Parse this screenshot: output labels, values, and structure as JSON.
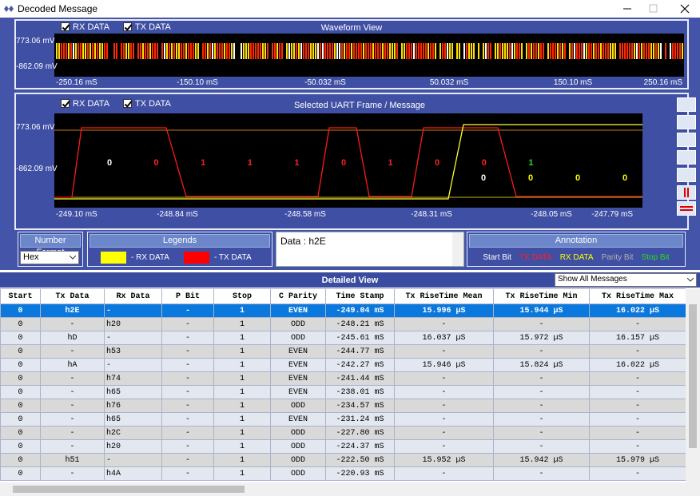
{
  "window": {
    "title": "Decoded Message"
  },
  "waveform_view": {
    "rx_label": "RX DATA",
    "tx_label": "TX DATA",
    "title": "Waveform View",
    "y_labels": [
      "773.06 mV",
      "-862.09 mV"
    ],
    "x_labels": [
      "-250.16 mS",
      "-150.10 mS",
      "-50.032 mS",
      "50.032 mS",
      "150.10 mS",
      "250.16 mS"
    ]
  },
  "frame_view": {
    "rx_label": "RX DATA",
    "tx_label": "TX DATA",
    "title": "Selected UART Frame / Message",
    "y_labels": [
      "773.06 mV",
      "-862.09 mV"
    ],
    "x_labels": [
      "-249.10 mS",
      "-248.84 mS",
      "-248.58 mS",
      "-248.31 mS",
      "-248.05 mS",
      "-247.79 mS"
    ],
    "upper_bits": [
      {
        "label": "0",
        "color": "#ffffff"
      },
      {
        "label": "0",
        "color": "#ff2020"
      },
      {
        "label": "1",
        "color": "#ff2020"
      },
      {
        "label": "1",
        "color": "#ff2020"
      },
      {
        "label": "1",
        "color": "#ff2020"
      },
      {
        "label": "0",
        "color": "#ff2020"
      },
      {
        "label": "1",
        "color": "#ff2020"
      },
      {
        "label": "0",
        "color": "#ff2020"
      },
      {
        "label": "0",
        "color": "#ff2020"
      },
      {
        "label": "1",
        "color": "#22dd22"
      }
    ],
    "lower_bits": [
      {
        "label": "0",
        "color": "#ffffff"
      },
      {
        "label": "0",
        "color": "#ffff00"
      },
      {
        "label": "0",
        "color": "#ffff00"
      },
      {
        "label": "0",
        "color": "#ffff00"
      }
    ]
  },
  "number_format": {
    "title": "Number Format",
    "value": "Hex"
  },
  "legends": {
    "title": "Legends",
    "items": [
      {
        "label": "- RX DATA",
        "color": "#ffff00"
      },
      {
        "label": "- TX DATA",
        "color": "#ff0000"
      }
    ]
  },
  "data_box": {
    "text": "Data : h2E"
  },
  "annotation": {
    "title": "Annotation",
    "items": [
      {
        "label": "Start Bit",
        "color": "#ffffff"
      },
      {
        "label": "TX DATA",
        "color": "#ff2020"
      },
      {
        "label": "RX DATA",
        "color": "#ffff00"
      },
      {
        "label": "Parity Bit",
        "color": "#b0b0b0"
      },
      {
        "label": "Stop Bit",
        "color": "#22dd22"
      }
    ]
  },
  "detailed_view": {
    "title": "Detailed View",
    "filter": "Show All Messages",
    "columns": [
      "Start",
      "Tx Data",
      "Rx Data",
      "P Bit",
      "Stop",
      "C Parity",
      "Time Stamp",
      "Tx RiseTime Mean",
      "Tx RiseTime Min",
      "Tx RiseTime Max"
    ],
    "rows": [
      [
        "0",
        "h2E",
        "-",
        "-",
        "1",
        "EVEN",
        "-249.04 mS",
        "15.996 µS",
        "15.944 µS",
        "16.022 µS"
      ],
      [
        "0",
        "-",
        "h20",
        "-",
        "1",
        "ODD",
        "-248.21 mS",
        "-",
        "-",
        "-"
      ],
      [
        "0",
        "hD",
        "-",
        "-",
        "1",
        "ODD",
        "-245.61 mS",
        "16.037 µS",
        "15.972 µS",
        "16.157 µS"
      ],
      [
        "0",
        "-",
        "h53",
        "-",
        "1",
        "EVEN",
        "-244.77 mS",
        "-",
        "-",
        "-"
      ],
      [
        "0",
        "hA",
        "-",
        "-",
        "1",
        "EVEN",
        "-242.27 mS",
        "15.946 µS",
        "15.824 µS",
        "16.022 µS"
      ],
      [
        "0",
        "-",
        "h74",
        "-",
        "1",
        "EVEN",
        "-241.44 mS",
        "-",
        "-",
        "-"
      ],
      [
        "0",
        "-",
        "h65",
        "-",
        "1",
        "EVEN",
        "-238.01 mS",
        "-",
        "-",
        "-"
      ],
      [
        "0",
        "-",
        "h76",
        "-",
        "1",
        "ODD",
        "-234.57 mS",
        "-",
        "-",
        "-"
      ],
      [
        "0",
        "-",
        "h65",
        "-",
        "1",
        "EVEN",
        "-231.24 mS",
        "-",
        "-",
        "-"
      ],
      [
        "0",
        "-",
        "h2C",
        "-",
        "1",
        "ODD",
        "-227.80 mS",
        "-",
        "-",
        "-"
      ],
      [
        "0",
        "-",
        "h20",
        "-",
        "1",
        "ODD",
        "-224.37 mS",
        "-",
        "-",
        "-"
      ],
      [
        "0",
        "h51",
        "-",
        "-",
        "1",
        "ODD",
        "-222.50 mS",
        "15.952 µS",
        "15.942 µS",
        "15.979 µS"
      ],
      [
        "0",
        "-",
        "h4A",
        "-",
        "1",
        "ODD",
        "-220.93 mS",
        "-",
        "-",
        "-"
      ]
    ]
  }
}
